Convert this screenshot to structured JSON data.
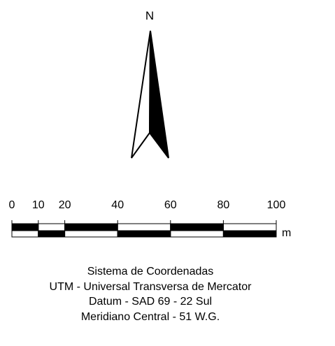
{
  "north_arrow": {
    "label": "N",
    "icon": "north-arrow-icon"
  },
  "scale_bar": {
    "tick_labels": [
      "0",
      "10",
      "20",
      "40",
      "60",
      "80",
      "100"
    ],
    "tick_values": [
      0,
      10,
      20,
      40,
      60,
      80,
      100
    ],
    "unit": "m",
    "max_value": 100
  },
  "legend": {
    "line1": "Sistema de Coordenadas",
    "line2": "UTM - Universal Transversa de Mercator",
    "line3": "Datum - SAD 69 - 22 Sul",
    "line4": "Meridiano Central - 51 W.G."
  },
  "colors": {
    "ink": "#000000",
    "paper": "#ffffff"
  }
}
